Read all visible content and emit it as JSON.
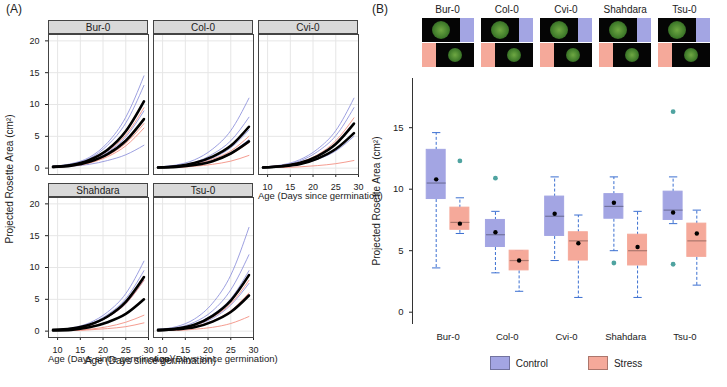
{
  "chart_data": [
    {
      "type": "line",
      "panel_label": "(A)",
      "xlabel": "Age (Days since germination)",
      "ylabel": "Projected Rosette Area (cm²)",
      "x": [
        9,
        13,
        17,
        21,
        25,
        29
      ],
      "xlim": [
        8,
        30
      ],
      "xticks": [
        10,
        15,
        20,
        25,
        30
      ],
      "ylim": [
        -1,
        21
      ],
      "yticks": [
        0,
        5,
        10,
        15,
        20
      ],
      "grid": true,
      "facets": [
        {
          "title": "Bur-0",
          "series": [
            {
              "color": "#8c8fdb",
              "values": [
                0.3,
                0.7,
                1.7,
                4.0,
                8.0,
                14.5
              ]
            },
            {
              "color": "#8c8fdb",
              "values": [
                0.3,
                0.6,
                1.5,
                3.6,
                7.1,
                13.0
              ]
            },
            {
              "color": "#8c8fdb",
              "values": [
                0.2,
                0.5,
                1.1,
                2.5,
                4.9,
                9.0
              ]
            },
            {
              "color": "#8c8fdb",
              "values": [
                0.1,
                0.3,
                0.6,
                1.2,
                2.1,
                3.6
              ]
            },
            {
              "color": "#f28b7d",
              "values": [
                0.2,
                0.5,
                1.2,
                2.7,
                5.2,
                9.5
              ]
            },
            {
              "color": "#f28b7d",
              "values": [
                0.2,
                0.4,
                0.9,
                2.0,
                3.9,
                7.0
              ]
            },
            {
              "color": "#f28b7d",
              "values": [
                0.1,
                0.3,
                0.8,
                1.8,
                3.5,
                6.3
              ]
            },
            {
              "color": "#000000",
              "line_style": "thick",
              "values": [
                0.2,
                0.5,
                1.3,
                2.9,
                5.8,
                10.5
              ]
            },
            {
              "color": "#000000",
              "line_style": "thick",
              "values": [
                0.2,
                0.4,
                1.0,
                2.2,
                4.3,
                7.7
              ]
            }
          ]
        },
        {
          "title": "Col-0",
          "series": [
            {
              "color": "#8c8fdb",
              "values": [
                0.2,
                0.5,
                1.3,
                3.0,
                5.9,
                11.0
              ]
            },
            {
              "color": "#8c8fdb",
              "values": [
                0.2,
                0.4,
                0.9,
                2.2,
                4.3,
                8.0
              ]
            },
            {
              "color": "#8c8fdb",
              "values": [
                0.1,
                0.3,
                0.7,
                1.6,
                3.2,
                6.0
              ]
            },
            {
              "color": "#8c8fdb",
              "values": [
                0.1,
                0.2,
                0.5,
                1.2,
                2.4,
                4.5
              ]
            },
            {
              "color": "#f28b7d",
              "values": [
                0.1,
                0.2,
                0.6,
                1.4,
                2.7,
                5.0
              ]
            },
            {
              "color": "#f28b7d",
              "values": [
                0.1,
                0.2,
                0.5,
                1.1,
                2.2,
                4.0
              ]
            },
            {
              "color": "#f28b7d",
              "values": [
                0.1,
                0.1,
                0.3,
                0.6,
                1.1,
                2.0
              ]
            },
            {
              "color": "#000000",
              "line_style": "thick",
              "values": [
                0.1,
                0.3,
                0.8,
                1.8,
                3.5,
                6.5
              ]
            },
            {
              "color": "#000000",
              "line_style": "thick",
              "values": [
                0.1,
                0.2,
                0.5,
                1.1,
                2.3,
                4.2
              ]
            }
          ]
        },
        {
          "title": "Cvi-0",
          "series": [
            {
              "color": "#8c8fdb",
              "values": [
                0.2,
                0.5,
                1.3,
                3.0,
                5.9,
                11.0
              ]
            },
            {
              "color": "#8c8fdb",
              "values": [
                0.2,
                0.4,
                1.1,
                2.6,
                5.1,
                9.5
              ]
            },
            {
              "color": "#8c8fdb",
              "values": [
                0.1,
                0.3,
                0.8,
                1.9,
                3.8,
                7.0
              ]
            },
            {
              "color": "#8c8fdb",
              "values": [
                0.1,
                0.2,
                0.6,
                1.4,
                2.7,
                5.0
              ]
            },
            {
              "color": "#f28b7d",
              "values": [
                0.2,
                0.4,
                0.9,
                2.1,
                4.3,
                7.9
              ]
            },
            {
              "color": "#f28b7d",
              "values": [
                0.1,
                0.3,
                0.6,
                1.5,
                3.0,
                5.5
              ]
            },
            {
              "color": "#f28b7d",
              "values": [
                0.1,
                0.1,
                0.2,
                0.4,
                0.7,
                1.2
              ]
            },
            {
              "color": "#000000",
              "line_style": "thick",
              "values": [
                0.1,
                0.3,
                0.8,
                1.9,
                3.8,
                7.0
              ]
            },
            {
              "color": "#000000",
              "line_style": "thick",
              "values": [
                0.1,
                0.3,
                0.6,
                1.5,
                3.0,
                5.5
              ]
            }
          ]
        },
        {
          "title": "Shahdara",
          "series": [
            {
              "color": "#8c8fdb",
              "values": [
                0.2,
                0.5,
                1.3,
                3.0,
                5.9,
                11.0
              ]
            },
            {
              "color": "#8c8fdb",
              "values": [
                0.2,
                0.4,
                1.1,
                2.6,
                5.1,
                9.5
              ]
            },
            {
              "color": "#8c8fdb",
              "values": [
                0.2,
                0.4,
                0.9,
                2.2,
                4.3,
                8.0
              ]
            },
            {
              "color": "#f28b7d",
              "values": [
                0.2,
                0.4,
                0.9,
                2.2,
                4.3,
                8.0
              ]
            },
            {
              "color": "#f28b7d",
              "values": [
                0.1,
                0.2,
                0.6,
                1.4,
                2.7,
                5.0
              ]
            },
            {
              "color": "#f28b7d",
              "values": [
                0.1,
                0.1,
                0.3,
                0.7,
                1.4,
                2.5
              ]
            },
            {
              "color": "#f28b7d",
              "values": [
                0.1,
                0.1,
                0.2,
                0.4,
                0.7,
                1.3
              ]
            },
            {
              "color": "#000000",
              "line_style": "thick",
              "values": [
                0.2,
                0.4,
                1.0,
                2.3,
                4.6,
                8.5
              ]
            },
            {
              "color": "#000000",
              "line_style": "thick",
              "values": [
                0.1,
                0.2,
                0.6,
                1.4,
                2.7,
                5.0
              ]
            }
          ]
        },
        {
          "title": "Tsu-0",
          "series": [
            {
              "color": "#8c8fdb",
              "values": [
                0.3,
                0.7,
                1.9,
                4.4,
                8.8,
                16.3
              ]
            },
            {
              "color": "#8c8fdb",
              "values": [
                0.2,
                0.5,
                1.4,
                3.2,
                6.5,
                12.0
              ]
            },
            {
              "color": "#8c8fdb",
              "values": [
                0.2,
                0.4,
                1.1,
                2.6,
                5.1,
                9.5
              ]
            },
            {
              "color": "#8c8fdb",
              "values": [
                0.2,
                0.3,
                0.9,
                2.0,
                4.1,
                7.5
              ]
            },
            {
              "color": "#f28b7d",
              "values": [
                0.2,
                0.4,
                0.9,
                2.2,
                4.3,
                8.0
              ]
            },
            {
              "color": "#f28b7d",
              "values": [
                0.1,
                0.3,
                0.7,
                1.6,
                3.2,
                6.0
              ]
            },
            {
              "color": "#f28b7d",
              "values": [
                0.1,
                0.1,
                0.3,
                0.6,
                1.2,
                2.3
              ]
            },
            {
              "color": "#000000",
              "line_style": "thick",
              "values": [
                0.2,
                0.4,
                1.0,
                2.4,
                4.8,
                8.8
              ]
            },
            {
              "color": "#000000",
              "line_style": "thick",
              "values": [
                0.1,
                0.3,
                0.6,
                1.5,
                3.0,
                5.6
              ]
            }
          ]
        }
      ]
    },
    {
      "type": "box",
      "panel_label": "(B)",
      "ylabel": "Projected Rosette Area (cm²)",
      "categories": [
        "Bur-0",
        "Col-0",
        "Cvi-0",
        "Shahdara",
        "Tsu-0"
      ],
      "ylim": [
        -1,
        19
      ],
      "yticks": [
        0,
        5,
        10,
        15
      ],
      "legend": "bottom",
      "series": [
        {
          "name": "Control",
          "color": "#a3a5e3",
          "min": [
            3.6,
            3.2,
            4.2,
            5.0,
            7.2
          ],
          "q1": [
            9.2,
            5.3,
            6.2,
            7.6,
            7.5
          ],
          "median": [
            10.5,
            6.3,
            7.8,
            8.6,
            8.3
          ],
          "q3": [
            13.2,
            7.5,
            9.4,
            9.6,
            9.8
          ],
          "max": [
            14.6,
            8.2,
            11.0,
            11.0,
            11.0
          ],
          "mean": [
            10.8,
            6.5,
            8.0,
            8.9,
            8.1
          ],
          "outliers": [
            [],
            [
              10.9
            ],
            [],
            [
              4.0
            ],
            [
              16.3,
              3.9
            ]
          ]
        },
        {
          "name": "Stress",
          "color": "#f5a99a",
          "min": [
            6.4,
            1.7,
            1.2,
            1.2,
            2.2
          ],
          "q1": [
            6.7,
            3.4,
            4.2,
            3.8,
            4.5
          ],
          "median": [
            7.3,
            4.2,
            5.8,
            5.0,
            5.8
          ],
          "q3": [
            8.5,
            5.0,
            6.5,
            6.3,
            7.2
          ],
          "max": [
            9.3,
            5.0,
            7.9,
            8.2,
            8.3
          ],
          "mean": [
            7.2,
            4.2,
            5.6,
            5.3,
            6.4
          ],
          "outliers": [
            [
              12.3
            ],
            [],
            [],
            [],
            []
          ]
        }
      ]
    }
  ]
}
